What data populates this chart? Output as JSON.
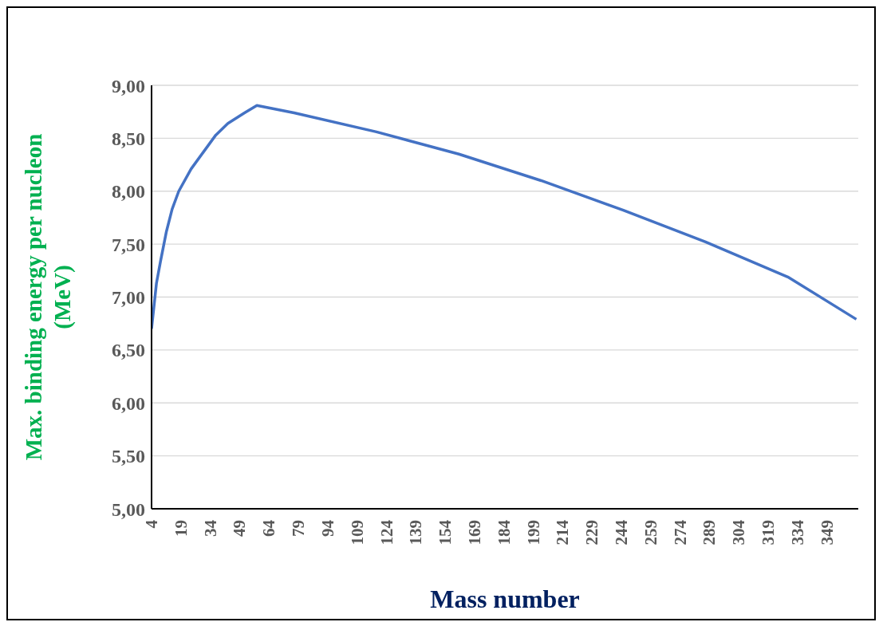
{
  "chart_data": {
    "type": "line",
    "xlabel": "Mass number",
    "ylabel": "Max. binding energy per nucleon (MeV)",
    "x": [
      4,
      6.5,
      8.6,
      11.6,
      14.5,
      17.9,
      24.2,
      30.5,
      36.8,
      43,
      51.5,
      57.8,
      76.8,
      118.9,
      161,
      203,
      245,
      287,
      329,
      364
    ],
    "series": [
      {
        "color": "#4472c4",
        "values": [
          6.7,
          7.13,
          7.34,
          7.62,
          7.83,
          8.0,
          8.21,
          8.37,
          8.53,
          8.64,
          8.74,
          8.81,
          8.74,
          8.56,
          8.35,
          8.1,
          7.82,
          7.52,
          7.19,
          6.79
        ]
      }
    ],
    "xlim": [
      4,
      365
    ],
    "xticks": [
      4,
      19,
      34,
      49,
      64,
      79,
      94,
      109,
      124,
      139,
      154,
      169,
      184,
      199,
      214,
      229,
      244,
      259,
      274,
      289,
      304,
      319,
      334,
      349
    ],
    "ylim": [
      5,
      9
    ],
    "yticks": [
      {
        "value": 5,
        "label": "5,00"
      },
      {
        "value": 5.5,
        "label": "5,50"
      },
      {
        "value": 6,
        "label": "6,00"
      },
      {
        "value": 6.5,
        "label": "6,50"
      },
      {
        "value": 7,
        "label": "7,00"
      },
      {
        "value": 7.5,
        "label": "7,50"
      },
      {
        "value": 8,
        "label": "8,00"
      },
      {
        "value": 8.5,
        "label": "8,50"
      },
      {
        "value": 9,
        "label": "9,00"
      }
    ],
    "grid": "y",
    "legend": false,
    "marker": "none",
    "line_style": "solid"
  }
}
